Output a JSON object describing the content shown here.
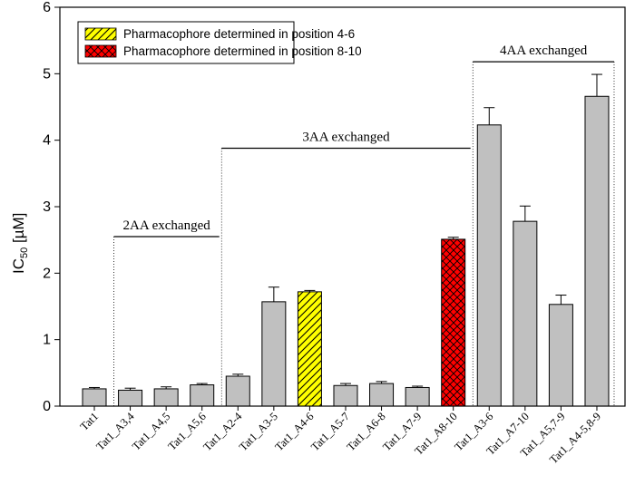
{
  "chart_data": {
    "type": "bar",
    "title": "",
    "xlabel": "",
    "ylabel": "IC50 [µM]",
    "ylabel_main": "IC",
    "ylabel_sub": "50",
    "ylabel_unit": " [µM]",
    "ylim": [
      0,
      6
    ],
    "yticks": [
      "0",
      "1",
      "2",
      "3",
      "4",
      "5",
      "6"
    ],
    "categories": [
      "Tat1",
      "Tat1_A3,4",
      "Tat1_A4,5",
      "Tat1_A5,6",
      "Tat1_A2-4",
      "Tat1_A3-5",
      "Tat1_A4-6",
      "Tat1_A5-7",
      "Tat1_A6-8",
      "Tat1_A7-9",
      "Tat1_A8-10",
      "Tat1_A3-6",
      "Tat1_A7-10",
      "Tat1_A5,7-9",
      "Tat1_A4-5,8-9"
    ],
    "values": [
      0.26,
      0.24,
      0.26,
      0.32,
      0.45,
      1.57,
      1.72,
      0.31,
      0.34,
      0.28,
      2.51,
      4.23,
      2.78,
      1.53,
      4.66
    ],
    "errors": [
      0.02,
      0.03,
      0.03,
      0.02,
      0.03,
      0.22,
      0.02,
      0.03,
      0.03,
      0.02,
      0.03,
      0.26,
      0.23,
      0.14,
      0.33
    ],
    "styles": [
      "gray",
      "gray",
      "gray",
      "gray",
      "gray",
      "gray",
      "yellow",
      "gray",
      "gray",
      "gray",
      "red",
      "gray",
      "gray",
      "gray",
      "gray"
    ],
    "groups": [
      {
        "label": "2AA exchanged",
        "start": 1,
        "end": 3,
        "level": 2.55
      },
      {
        "label": "3AA exchanged",
        "start": 4,
        "end": 10,
        "level": 3.88
      },
      {
        "label": "4AA exchanged",
        "start": 11,
        "end": 14,
        "level": 5.18
      }
    ],
    "legend": [
      {
        "label": "Pharmacophore determined in position 4-6",
        "style": "yellow"
      },
      {
        "label": "Pharmacophore determined in position 8-10",
        "style": "red"
      }
    ],
    "legend_position": "top-left",
    "colors": {
      "gray": "#c0c0c0",
      "yellow": "#ffff00",
      "red": "#ff0000"
    }
  }
}
